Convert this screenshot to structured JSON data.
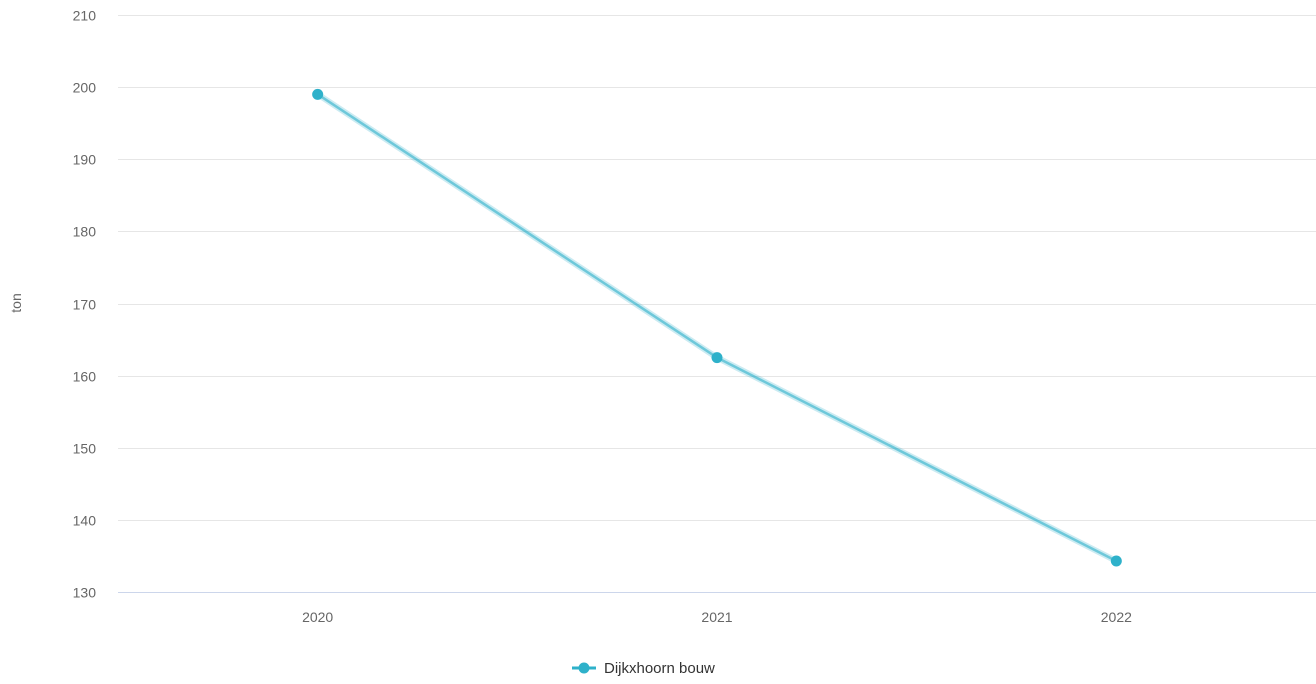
{
  "chart_data": {
    "type": "line",
    "title": "",
    "xlabel": "",
    "ylabel": "ton",
    "categories": [
      "2020",
      "2021",
      "2022"
    ],
    "series": [
      {
        "name": "Dijkxhoorn bouw",
        "values": [
          199.0,
          162.5,
          134.3
        ],
        "color": "#2eb1ca"
      }
    ],
    "ylim": [
      130,
      210
    ],
    "yticks": [
      130,
      140,
      150,
      160,
      170,
      180,
      190,
      200,
      210
    ],
    "grid": true,
    "legend": "bottom-center"
  }
}
